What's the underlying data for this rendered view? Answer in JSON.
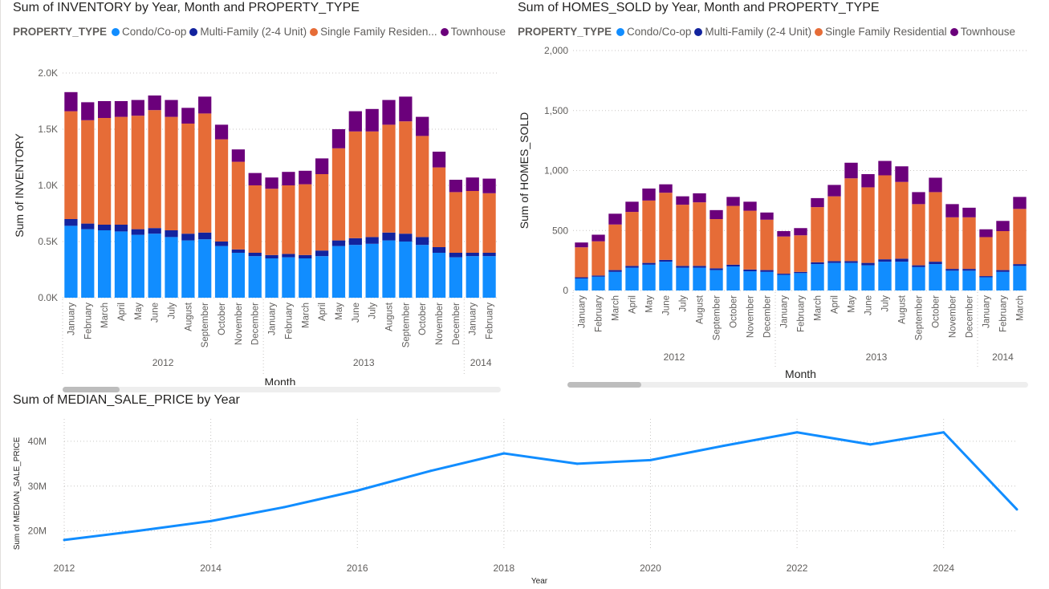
{
  "colors": {
    "condo": "#118DFF",
    "multi": "#12239E",
    "single": "#E66C37",
    "town": "#6B007B",
    "line": "#118DFF",
    "axis_text": "#605e5c",
    "grid": "#c8c6c4"
  },
  "inventory_visual": {
    "title": "Sum of INVENTORY by Year, Month and PROPERTY_TYPE",
    "legend_title": "PROPERTY_TYPE",
    "legend_items": [
      "Condo/Co-op",
      "Multi-Family (2-4 Unit)",
      "Single Family Residen...",
      "Townhouse"
    ],
    "scroll_fraction": [
      0.0,
      0.13
    ]
  },
  "homes_visual": {
    "title": "Sum of HOMES_SOLD by Year, Month and PROPERTY_TYPE",
    "legend_title": "PROPERTY_TYPE",
    "legend_items": [
      "Condo/Co-op",
      "Multi-Family (2-4 Unit)",
      "Single Family Residential",
      "Townhouse"
    ],
    "scroll_fraction": [
      0.0,
      0.16
    ]
  },
  "price_visual": {
    "title": "Sum of MEDIAN_SALE_PRICE by Year"
  },
  "chart_data": [
    {
      "type": "bar",
      "stacked": true,
      "title": "Sum of INVENTORY by Year, Month and PROPERTY_TYPE",
      "xlabel": "Month",
      "ylabel": "Sum of INVENTORY",
      "ylim": [
        0,
        2000
      ],
      "yticks": [
        0,
        500,
        1000,
        1500,
        2000
      ],
      "ytick_labels": [
        "0.0K",
        "0.5K",
        "1.0K",
        "1.5K",
        "2.0K"
      ],
      "grid": true,
      "legend_position": "top",
      "categories": [
        "January",
        "February",
        "March",
        "April",
        "May",
        "June",
        "July",
        "August",
        "September",
        "October",
        "November",
        "December",
        "January",
        "February",
        "March",
        "April",
        "May",
        "June",
        "July",
        "August",
        "September",
        "October",
        "November",
        "December",
        "January",
        "February"
      ],
      "year_groups": [
        {
          "label": "2012",
          "count": 12
        },
        {
          "label": "2013",
          "count": 12
        },
        {
          "label": "2014",
          "count": 2
        }
      ],
      "series": [
        {
          "name": "Condo/Co-op",
          "values": [
            640,
            610,
            600,
            590,
            560,
            570,
            540,
            510,
            520,
            460,
            400,
            370,
            350,
            360,
            350,
            370,
            460,
            470,
            480,
            510,
            500,
            470,
            400,
            360,
            370,
            370
          ]
        },
        {
          "name": "Multi-Family (2-4 Unit)",
          "values": [
            60,
            50,
            50,
            60,
            50,
            50,
            60,
            60,
            60,
            40,
            30,
            30,
            30,
            30,
            30,
            50,
            50,
            60,
            60,
            70,
            70,
            70,
            50,
            40,
            30,
            30
          ]
        },
        {
          "name": "Single Family Residential",
          "values": [
            960,
            920,
            950,
            960,
            1010,
            1050,
            1010,
            980,
            1060,
            910,
            780,
            600,
            590,
            610,
            630,
            680,
            820,
            950,
            940,
            960,
            1000,
            900,
            710,
            540,
            550,
            530
          ]
        },
        {
          "name": "Townhouse",
          "values": [
            170,
            160,
            150,
            140,
            140,
            130,
            150,
            140,
            150,
            130,
            110,
            110,
            100,
            120,
            120,
            140,
            170,
            180,
            200,
            220,
            220,
            170,
            140,
            110,
            120,
            130
          ]
        }
      ]
    },
    {
      "type": "bar",
      "stacked": true,
      "title": "Sum of HOMES_SOLD by Year, Month and PROPERTY_TYPE",
      "xlabel": "Month",
      "ylabel": "Sum of HOMES_SOLD",
      "ylim": [
        0,
        2000
      ],
      "yticks": [
        0,
        500,
        1000,
        1500,
        2000
      ],
      "ytick_labels": [
        "0",
        "500",
        "1,000",
        "1,500",
        "2,000"
      ],
      "grid": true,
      "legend_position": "top",
      "categories": [
        "January",
        "February",
        "March",
        "April",
        "May",
        "June",
        "July",
        "August",
        "September",
        "October",
        "November",
        "December",
        "January",
        "February",
        "March",
        "April",
        "May",
        "June",
        "July",
        "August",
        "September",
        "October",
        "November",
        "December",
        "January",
        "February",
        "March"
      ],
      "year_groups": [
        {
          "label": "2012",
          "count": 12
        },
        {
          "label": "2013",
          "count": 12
        },
        {
          "label": "2014",
          "count": 3
        }
      ],
      "series": [
        {
          "name": "Condo/Co-op",
          "values": [
            100,
            115,
            155,
            190,
            215,
            240,
            190,
            190,
            170,
            200,
            160,
            155,
            130,
            145,
            220,
            230,
            230,
            210,
            240,
            240,
            195,
            220,
            165,
            165,
            110,
            155,
            205
          ]
        },
        {
          "name": "Multi-Family (2-4 Unit)",
          "values": [
            10,
            10,
            15,
            15,
            15,
            15,
            15,
            15,
            15,
            15,
            15,
            15,
            10,
            10,
            15,
            15,
            15,
            20,
            20,
            25,
            15,
            20,
            15,
            15,
            10,
            15,
            15
          ]
        },
        {
          "name": "Single Family Residential",
          "values": [
            250,
            285,
            380,
            450,
            520,
            560,
            510,
            530,
            410,
            490,
            490,
            420,
            310,
            305,
            460,
            540,
            690,
            630,
            700,
            640,
            510,
            580,
            430,
            430,
            325,
            325,
            460
          ]
        },
        {
          "name": "Townhouse",
          "values": [
            40,
            55,
            90,
            85,
            100,
            70,
            70,
            75,
            75,
            75,
            75,
            60,
            45,
            60,
            75,
            95,
            130,
            110,
            120,
            130,
            100,
            120,
            110,
            80,
            65,
            85,
            100
          ]
        }
      ]
    },
    {
      "type": "line",
      "title": "Sum of MEDIAN_SALE_PRICE by Year",
      "xlabel": "Year",
      "ylabel": "Sum of MEDIAN_SALE_PRICE",
      "xlim": [
        2012,
        2025
      ],
      "xticks": [
        2012,
        2014,
        2016,
        2018,
        2020,
        2022,
        2024
      ],
      "ylim": [
        16000000,
        45000000
      ],
      "yticks": [
        20000000,
        30000000,
        40000000
      ],
      "ytick_labels": [
        "20M",
        "30M",
        "40M"
      ],
      "grid": true,
      "x": [
        2012,
        2013,
        2014,
        2015,
        2016,
        2017,
        2018,
        2019,
        2020,
        2021,
        2022,
        2023,
        2024,
        2025
      ],
      "series": [
        {
          "values": [
            18000000,
            20000000,
            22200000,
            25300000,
            29000000,
            33400000,
            37300000,
            35000000,
            35800000,
            39000000,
            42000000,
            39300000,
            42000000,
            24800000
          ]
        }
      ]
    }
  ]
}
